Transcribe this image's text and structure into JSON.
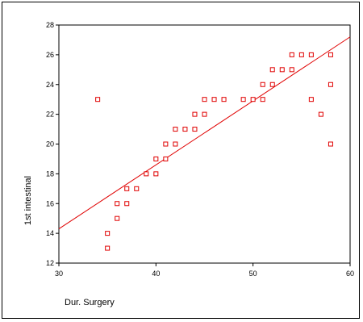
{
  "chart_data": {
    "type": "scatter",
    "title": "",
    "xlabel": "Dur. Surgery",
    "ylabel": "1st intestinal",
    "xlim": [
      30,
      60
    ],
    "ylim": [
      12,
      28
    ],
    "xticks": [
      30,
      40,
      50,
      60
    ],
    "yticks": [
      12,
      14,
      16,
      18,
      20,
      22,
      24,
      26,
      28
    ],
    "grid": false,
    "legend": "none",
    "marker_color": "#e00000",
    "line_color": "#e00000",
    "points": [
      {
        "x": 34,
        "y": 23
      },
      {
        "x": 35,
        "y": 13
      },
      {
        "x": 35,
        "y": 14
      },
      {
        "x": 36,
        "y": 15
      },
      {
        "x": 36,
        "y": 16
      },
      {
        "x": 37,
        "y": 16
      },
      {
        "x": 37,
        "y": 17
      },
      {
        "x": 38,
        "y": 17
      },
      {
        "x": 39,
        "y": 18
      },
      {
        "x": 40,
        "y": 18
      },
      {
        "x": 40,
        "y": 19
      },
      {
        "x": 41,
        "y": 19
      },
      {
        "x": 41,
        "y": 20
      },
      {
        "x": 42,
        "y": 20
      },
      {
        "x": 42,
        "y": 21
      },
      {
        "x": 43,
        "y": 21
      },
      {
        "x": 44,
        "y": 21
      },
      {
        "x": 44,
        "y": 22
      },
      {
        "x": 45,
        "y": 22
      },
      {
        "x": 45,
        "y": 23
      },
      {
        "x": 46,
        "y": 23
      },
      {
        "x": 47,
        "y": 23
      },
      {
        "x": 49,
        "y": 23
      },
      {
        "x": 50,
        "y": 23
      },
      {
        "x": 51,
        "y": 23
      },
      {
        "x": 51,
        "y": 24
      },
      {
        "x": 52,
        "y": 24
      },
      {
        "x": 52,
        "y": 25
      },
      {
        "x": 53,
        "y": 25
      },
      {
        "x": 54,
        "y": 25
      },
      {
        "x": 54,
        "y": 26
      },
      {
        "x": 55,
        "y": 26
      },
      {
        "x": 56,
        "y": 26
      },
      {
        "x": 56,
        "y": 23
      },
      {
        "x": 57,
        "y": 22
      },
      {
        "x": 58,
        "y": 26
      },
      {
        "x": 58,
        "y": 24
      },
      {
        "x": 58,
        "y": 20
      }
    ],
    "fit_line": {
      "x_start": 30,
      "y_start": 14.3,
      "x_end": 60,
      "y_end": 27.2
    }
  }
}
